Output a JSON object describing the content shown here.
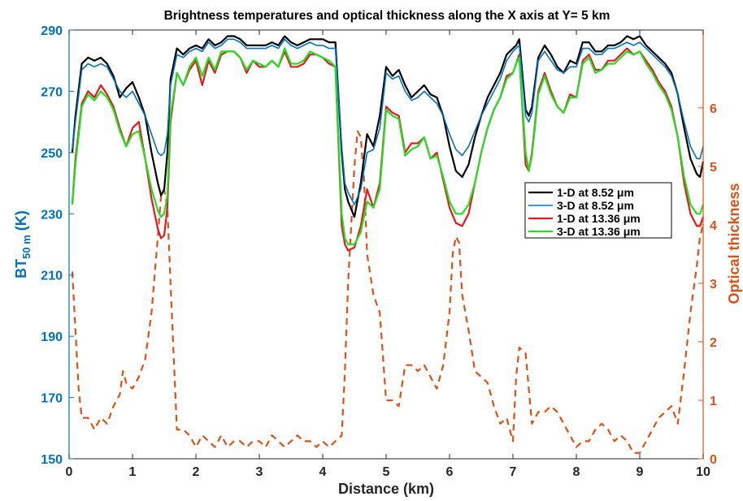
{
  "chart_data": {
    "type": "line",
    "title": "Brightness temperatures and optical thickness along the X axis at Y= 5 km",
    "xlabel": "Distance (km)",
    "ylabel_left": {
      "main": "BT",
      "sub": "50 m",
      "unit": "(K)"
    },
    "ylabel_right": "Optical thickness",
    "xlim": [
      0,
      10
    ],
    "ylim_left": [
      150,
      290
    ],
    "ylim_right": [
      0,
      7.33
    ],
    "xticks": [
      "0",
      "1",
      "2",
      "3",
      "4",
      "5",
      "6",
      "7",
      "8",
      "9",
      "10"
    ],
    "yticks_left": [
      "150",
      "170",
      "190",
      "210",
      "230",
      "250",
      "270",
      "290"
    ],
    "yticks_right": [
      "0",
      "1",
      "2",
      "3",
      "4",
      "5",
      "6"
    ],
    "grid": false,
    "legend_position": "center-right",
    "colors": {
      "left_axis": "#0072BD",
      "right_axis": "#D95319",
      "tick_x": "#262626"
    },
    "series": [
      {
        "name": "1-D at 8.52 μm",
        "axis": "left",
        "color": "#000000",
        "style": "solid",
        "x": [
          0.05,
          0.1,
          0.2,
          0.3,
          0.4,
          0.5,
          0.6,
          0.7,
          0.8,
          0.9,
          1.0,
          1.1,
          1.2,
          1.3,
          1.4,
          1.45,
          1.5,
          1.55,
          1.6,
          1.7,
          1.8,
          1.9,
          2.0,
          2.1,
          2.2,
          2.3,
          2.4,
          2.5,
          2.6,
          2.7,
          2.8,
          2.9,
          3.0,
          3.1,
          3.2,
          3.3,
          3.4,
          3.5,
          3.6,
          3.7,
          3.8,
          3.9,
          4.0,
          4.1,
          4.2,
          4.3,
          4.35,
          4.4,
          4.5,
          4.6,
          4.7,
          4.8,
          4.9,
          5.0,
          5.1,
          5.2,
          5.3,
          5.4,
          5.5,
          5.6,
          5.7,
          5.8,
          5.9,
          6.0,
          6.1,
          6.2,
          6.3,
          6.4,
          6.5,
          6.6,
          6.7,
          6.8,
          6.9,
          7.0,
          7.05,
          7.1,
          7.2,
          7.25,
          7.3,
          7.4,
          7.5,
          7.6,
          7.7,
          7.8,
          7.9,
          8.0,
          8.1,
          8.2,
          8.3,
          8.4,
          8.5,
          8.6,
          8.7,
          8.8,
          8.9,
          9.0,
          9.1,
          9.2,
          9.3,
          9.4,
          9.5,
          9.6,
          9.7,
          9.8,
          9.9,
          9.95,
          10.0
        ],
        "values": [
          250,
          262,
          279,
          281,
          280,
          281,
          279,
          275,
          268,
          271,
          273,
          268,
          262,
          250,
          240,
          236,
          238,
          250,
          274,
          284,
          282,
          284,
          285,
          284,
          287,
          285,
          286,
          288,
          288,
          287,
          285,
          285,
          285,
          285,
          286,
          285,
          288,
          286,
          285,
          286,
          287,
          287,
          287,
          286,
          286,
          250,
          238,
          234,
          229,
          240,
          256,
          252,
          262,
          278,
          275,
          277,
          272,
          268,
          270,
          272,
          269,
          268,
          262,
          252,
          244,
          242,
          246,
          255,
          262,
          268,
          272,
          276,
          282,
          284,
          285,
          287,
          264,
          262,
          265,
          281,
          285,
          282,
          278,
          276,
          280,
          279,
          286,
          286,
          283,
          283,
          285,
          285,
          286,
          288,
          287,
          288,
          285,
          283,
          281,
          279,
          276,
          269,
          258,
          248,
          243,
          242,
          247
        ]
      },
      {
        "name": "3-D at 8.52 μm",
        "axis": "left",
        "color": "#0072BD",
        "style": "solid",
        "x": [
          0.05,
          0.1,
          0.2,
          0.3,
          0.4,
          0.5,
          0.6,
          0.7,
          0.8,
          0.9,
          1.0,
          1.1,
          1.2,
          1.3,
          1.4,
          1.45,
          1.5,
          1.55,
          1.6,
          1.7,
          1.8,
          1.9,
          2.0,
          2.1,
          2.2,
          2.3,
          2.4,
          2.5,
          2.6,
          2.7,
          2.8,
          2.9,
          3.0,
          3.1,
          3.2,
          3.3,
          3.4,
          3.5,
          3.6,
          3.7,
          3.8,
          3.9,
          4.0,
          4.1,
          4.2,
          4.3,
          4.35,
          4.4,
          4.5,
          4.6,
          4.7,
          4.8,
          4.9,
          5.0,
          5.1,
          5.2,
          5.3,
          5.4,
          5.5,
          5.6,
          5.7,
          5.8,
          5.9,
          6.0,
          6.1,
          6.2,
          6.3,
          6.4,
          6.5,
          6.6,
          6.7,
          6.8,
          6.9,
          7.0,
          7.05,
          7.1,
          7.2,
          7.25,
          7.3,
          7.4,
          7.5,
          7.6,
          7.7,
          7.8,
          7.9,
          8.0,
          8.1,
          8.2,
          8.3,
          8.4,
          8.5,
          8.6,
          8.7,
          8.8,
          8.9,
          9.0,
          9.1,
          9.2,
          9.3,
          9.4,
          9.5,
          9.6,
          9.7,
          9.8,
          9.9,
          9.95,
          10.0
        ],
        "values": [
          251,
          260,
          277,
          279,
          278,
          279,
          278,
          274,
          270,
          268,
          270,
          266,
          262,
          256,
          250,
          249,
          250,
          256,
          272,
          282,
          281,
          283,
          284,
          283,
          286,
          284,
          285,
          287,
          287,
          286,
          284,
          284,
          284,
          284,
          285,
          284,
          287,
          285,
          284,
          285,
          286,
          285,
          285,
          284,
          284,
          252,
          240,
          237,
          233,
          238,
          250,
          251,
          258,
          276,
          274,
          275,
          270,
          267,
          268,
          270,
          268,
          266,
          262,
          256,
          251,
          249,
          252,
          257,
          262,
          266,
          270,
          274,
          280,
          283,
          284,
          285,
          262,
          260,
          263,
          280,
          283,
          280,
          277,
          276,
          278,
          278,
          284,
          284,
          282,
          282,
          284,
          284,
          285,
          286,
          285,
          286,
          284,
          282,
          280,
          278,
          275,
          269,
          260,
          252,
          248,
          248,
          252
        ]
      },
      {
        "name": "1-D at 13.36 μm",
        "axis": "left",
        "color": "#E41A1C",
        "style": "solid",
        "x": [
          0.05,
          0.1,
          0.2,
          0.3,
          0.4,
          0.5,
          0.6,
          0.7,
          0.8,
          0.9,
          1.0,
          1.1,
          1.2,
          1.3,
          1.4,
          1.45,
          1.5,
          1.55,
          1.6,
          1.7,
          1.8,
          1.9,
          2.0,
          2.1,
          2.2,
          2.3,
          2.4,
          2.5,
          2.6,
          2.7,
          2.8,
          2.9,
          3.0,
          3.1,
          3.2,
          3.3,
          3.4,
          3.5,
          3.6,
          3.7,
          3.8,
          3.9,
          4.0,
          4.1,
          4.2,
          4.3,
          4.35,
          4.4,
          4.5,
          4.6,
          4.7,
          4.8,
          4.9,
          5.0,
          5.1,
          5.2,
          5.3,
          5.4,
          5.5,
          5.6,
          5.7,
          5.8,
          5.9,
          6.0,
          6.1,
          6.2,
          6.3,
          6.4,
          6.5,
          6.6,
          6.7,
          6.8,
          6.9,
          7.0,
          7.05,
          7.1,
          7.2,
          7.25,
          7.3,
          7.4,
          7.5,
          7.6,
          7.7,
          7.8,
          7.9,
          8.0,
          8.1,
          8.2,
          8.3,
          8.4,
          8.5,
          8.6,
          8.7,
          8.8,
          8.9,
          9.0,
          9.1,
          9.2,
          9.3,
          9.4,
          9.5,
          9.6,
          9.7,
          9.8,
          9.9,
          9.95,
          10.0
        ],
        "values": [
          233,
          248,
          266,
          270,
          268,
          272,
          269,
          265,
          258,
          252,
          258,
          260,
          248,
          235,
          225,
          222,
          223,
          232,
          260,
          276,
          272,
          277,
          280,
          272,
          280,
          276,
          282,
          283,
          283,
          281,
          276,
          280,
          278,
          278,
          280,
          278,
          283,
          278,
          278,
          279,
          282,
          282,
          281,
          279,
          278,
          226,
          220,
          218,
          219,
          226,
          238,
          232,
          240,
          265,
          263,
          262,
          250,
          253,
          253,
          255,
          248,
          250,
          241,
          232,
          227,
          226,
          230,
          240,
          250,
          258,
          264,
          268,
          275,
          276,
          279,
          282,
          246,
          244,
          250,
          270,
          276,
          270,
          265,
          263,
          269,
          268,
          280,
          282,
          277,
          277,
          280,
          280,
          282,
          284,
          282,
          283,
          280,
          277,
          273,
          270,
          265,
          255,
          240,
          230,
          226,
          226,
          229
        ]
      },
      {
        "name": "3-D at 13.36 μm",
        "axis": "left",
        "color": "#22DD22",
        "style": "solid",
        "x": [
          0.05,
          0.1,
          0.2,
          0.3,
          0.4,
          0.5,
          0.6,
          0.7,
          0.8,
          0.9,
          1.0,
          1.1,
          1.2,
          1.3,
          1.4,
          1.45,
          1.5,
          1.55,
          1.6,
          1.7,
          1.8,
          1.9,
          2.0,
          2.1,
          2.2,
          2.3,
          2.4,
          2.5,
          2.6,
          2.7,
          2.8,
          2.9,
          3.0,
          3.1,
          3.2,
          3.3,
          3.4,
          3.5,
          3.6,
          3.7,
          3.8,
          3.9,
          4.0,
          4.1,
          4.2,
          4.3,
          4.35,
          4.4,
          4.5,
          4.6,
          4.7,
          4.8,
          4.9,
          5.0,
          5.1,
          5.2,
          5.3,
          5.4,
          5.5,
          5.6,
          5.7,
          5.8,
          5.9,
          6.0,
          6.1,
          6.2,
          6.3,
          6.4,
          6.5,
          6.6,
          6.7,
          6.8,
          6.9,
          7.0,
          7.05,
          7.1,
          7.2,
          7.25,
          7.3,
          7.4,
          7.5,
          7.6,
          7.7,
          7.8,
          7.9,
          8.0,
          8.1,
          8.2,
          8.3,
          8.4,
          8.5,
          8.6,
          8.7,
          8.8,
          8.9,
          9.0,
          9.1,
          9.2,
          9.3,
          9.4,
          9.5,
          9.6,
          9.7,
          9.8,
          9.9,
          9.95,
          10.0
        ],
        "values": [
          233,
          246,
          265,
          269,
          267,
          270,
          268,
          264,
          257,
          252,
          256,
          257,
          248,
          238,
          231,
          229,
          230,
          236,
          262,
          276,
          272,
          278,
          281,
          275,
          281,
          277,
          283,
          283,
          283,
          281,
          277,
          280,
          279,
          278,
          280,
          278,
          284,
          279,
          279,
          280,
          283,
          282,
          281,
          280,
          278,
          230,
          222,
          220,
          220,
          224,
          234,
          232,
          238,
          264,
          262,
          261,
          249,
          251,
          252,
          255,
          248,
          249,
          242,
          234,
          230,
          230,
          233,
          240,
          250,
          258,
          264,
          268,
          274,
          276,
          279,
          281,
          250,
          244,
          249,
          269,
          275,
          269,
          265,
          263,
          268,
          268,
          279,
          281,
          276,
          277,
          279,
          279,
          281,
          283,
          282,
          283,
          279,
          276,
          272,
          269,
          264,
          255,
          242,
          233,
          230,
          230,
          233
        ]
      },
      {
        "axis": "right",
        "color": "#D95319",
        "style": "dashed",
        "x": [
          0.05,
          0.1,
          0.15,
          0.2,
          0.3,
          0.4,
          0.5,
          0.6,
          0.7,
          0.8,
          0.85,
          0.9,
          1.0,
          1.1,
          1.2,
          1.3,
          1.4,
          1.45,
          1.5,
          1.55,
          1.6,
          1.7,
          1.8,
          1.9,
          2.0,
          2.1,
          2.2,
          2.3,
          2.4,
          2.5,
          2.6,
          2.7,
          2.8,
          2.9,
          3.0,
          3.1,
          3.2,
          3.3,
          3.4,
          3.5,
          3.6,
          3.7,
          3.8,
          3.9,
          4.0,
          4.1,
          4.2,
          4.3,
          4.35,
          4.4,
          4.5,
          4.55,
          4.6,
          4.65,
          4.7,
          4.8,
          4.9,
          5.0,
          5.1,
          5.2,
          5.3,
          5.4,
          5.5,
          5.6,
          5.7,
          5.8,
          5.9,
          6.0,
          6.05,
          6.1,
          6.15,
          6.2,
          6.3,
          6.4,
          6.5,
          6.6,
          6.7,
          6.8,
          6.9,
          7.0,
          7.05,
          7.1,
          7.2,
          7.25,
          7.3,
          7.4,
          7.5,
          7.6,
          7.7,
          7.8,
          7.9,
          8.0,
          8.1,
          8.2,
          8.3,
          8.4,
          8.5,
          8.6,
          8.7,
          8.8,
          8.9,
          9.0,
          9.1,
          9.2,
          9.3,
          9.4,
          9.5,
          9.6,
          9.7,
          9.8,
          9.9,
          9.95,
          10.0
        ],
        "values": [
          3.2,
          2.2,
          1.2,
          0.7,
          0.7,
          0.5,
          0.7,
          0.6,
          0.9,
          1.1,
          1.5,
          1.3,
          1.2,
          1.4,
          1.7,
          2.5,
          3.8,
          4.5,
          4.6,
          4.3,
          3.0,
          0.5,
          0.5,
          0.4,
          0.2,
          0.4,
          0.3,
          0.2,
          0.4,
          0.2,
          0.3,
          0.3,
          0.2,
          0.3,
          0.3,
          0.2,
          0.4,
          0.3,
          0.2,
          0.3,
          0.4,
          0.3,
          0.3,
          0.2,
          0.3,
          0.2,
          0.3,
          0.4,
          1.5,
          3.0,
          5.0,
          5.6,
          5.5,
          4.8,
          3.5,
          2.8,
          2.5,
          1.0,
          1.0,
          0.9,
          1.6,
          1.6,
          1.5,
          1.6,
          1.4,
          1.2,
          1.6,
          2.5,
          3.5,
          3.8,
          3.7,
          2.8,
          2.2,
          1.5,
          1.4,
          1.3,
          0.9,
          0.6,
          0.7,
          0.3,
          1.4,
          1.9,
          1.8,
          1.2,
          0.6,
          0.8,
          0.8,
          0.9,
          0.8,
          0.6,
          0.4,
          0.2,
          0.3,
          0.3,
          0.5,
          0.6,
          0.5,
          0.3,
          0.4,
          0.3,
          0.1,
          0.1,
          0.3,
          0.5,
          0.7,
          0.8,
          0.9,
          0.6,
          1.5,
          2.5,
          3.3,
          3.8,
          4.0
        ]
      }
    ]
  }
}
